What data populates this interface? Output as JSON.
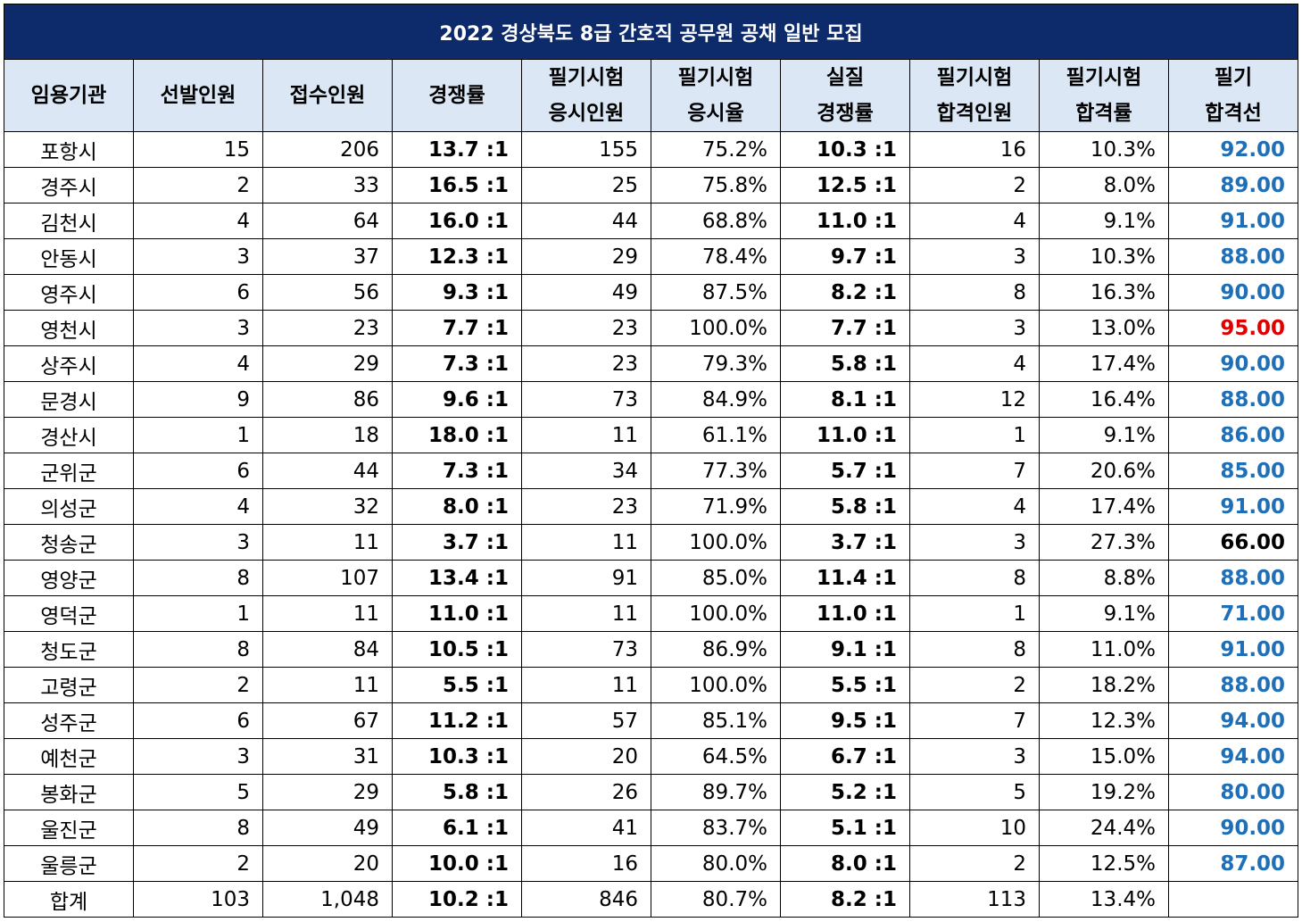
{
  "title": "2022 경상북도 8급 간호직 공무원 공채 일반 모집",
  "colors": {
    "header_bg": "#0d2b6b",
    "subheader_bg": "#dbe7f5",
    "cutoff_blue": "#1f6fb8",
    "cutoff_red": "#e00000",
    "cutoff_black": "#000000"
  },
  "headers": [
    [
      "임용기관"
    ],
    [
      "선발인원"
    ],
    [
      "접수인원"
    ],
    [
      "경쟁률"
    ],
    [
      "필기시험",
      "응시인원"
    ],
    [
      "필기시험",
      "응시율"
    ],
    [
      "실질",
      "경쟁률"
    ],
    [
      "필기시험",
      "합격인원"
    ],
    [
      "필기시험",
      "합격률"
    ],
    [
      "필기",
      "합격선"
    ]
  ],
  "rows": [
    {
      "org": "포항시",
      "quota": "15",
      "applicants": "206",
      "ratio": "13.7 :1",
      "test_takers": "155",
      "test_rate": "75.2%",
      "real_ratio": "10.3 :1",
      "passed": "16",
      "pass_rate": "10.3%",
      "cutoff": "92.00",
      "cutoff_color": "blue"
    },
    {
      "org": "경주시",
      "quota": "2",
      "applicants": "33",
      "ratio": "16.5 :1",
      "test_takers": "25",
      "test_rate": "75.8%",
      "real_ratio": "12.5 :1",
      "passed": "2",
      "pass_rate": "8.0%",
      "cutoff": "89.00",
      "cutoff_color": "blue"
    },
    {
      "org": "김천시",
      "quota": "4",
      "applicants": "64",
      "ratio": "16.0 :1",
      "test_takers": "44",
      "test_rate": "68.8%",
      "real_ratio": "11.0 :1",
      "passed": "4",
      "pass_rate": "9.1%",
      "cutoff": "91.00",
      "cutoff_color": "blue"
    },
    {
      "org": "안동시",
      "quota": "3",
      "applicants": "37",
      "ratio": "12.3 :1",
      "test_takers": "29",
      "test_rate": "78.4%",
      "real_ratio": "9.7 :1",
      "passed": "3",
      "pass_rate": "10.3%",
      "cutoff": "88.00",
      "cutoff_color": "blue"
    },
    {
      "org": "영주시",
      "quota": "6",
      "applicants": "56",
      "ratio": "9.3 :1",
      "test_takers": "49",
      "test_rate": "87.5%",
      "real_ratio": "8.2 :1",
      "passed": "8",
      "pass_rate": "16.3%",
      "cutoff": "90.00",
      "cutoff_color": "blue"
    },
    {
      "org": "영천시",
      "quota": "3",
      "applicants": "23",
      "ratio": "7.7 :1",
      "test_takers": "23",
      "test_rate": "100.0%",
      "real_ratio": "7.7 :1",
      "passed": "3",
      "pass_rate": "13.0%",
      "cutoff": "95.00",
      "cutoff_color": "red"
    },
    {
      "org": "상주시",
      "quota": "4",
      "applicants": "29",
      "ratio": "7.3 :1",
      "test_takers": "23",
      "test_rate": "79.3%",
      "real_ratio": "5.8 :1",
      "passed": "4",
      "pass_rate": "17.4%",
      "cutoff": "90.00",
      "cutoff_color": "blue"
    },
    {
      "org": "문경시",
      "quota": "9",
      "applicants": "86",
      "ratio": "9.6 :1",
      "test_takers": "73",
      "test_rate": "84.9%",
      "real_ratio": "8.1 :1",
      "passed": "12",
      "pass_rate": "16.4%",
      "cutoff": "88.00",
      "cutoff_color": "blue"
    },
    {
      "org": "경산시",
      "quota": "1",
      "applicants": "18",
      "ratio": "18.0 :1",
      "test_takers": "11",
      "test_rate": "61.1%",
      "real_ratio": "11.0 :1",
      "passed": "1",
      "pass_rate": "9.1%",
      "cutoff": "86.00",
      "cutoff_color": "blue"
    },
    {
      "org": "군위군",
      "quota": "6",
      "applicants": "44",
      "ratio": "7.3 :1",
      "test_takers": "34",
      "test_rate": "77.3%",
      "real_ratio": "5.7 :1",
      "passed": "7",
      "pass_rate": "20.6%",
      "cutoff": "85.00",
      "cutoff_color": "blue"
    },
    {
      "org": "의성군",
      "quota": "4",
      "applicants": "32",
      "ratio": "8.0 :1",
      "test_takers": "23",
      "test_rate": "71.9%",
      "real_ratio": "5.8 :1",
      "passed": "4",
      "pass_rate": "17.4%",
      "cutoff": "91.00",
      "cutoff_color": "blue"
    },
    {
      "org": "청송군",
      "quota": "3",
      "applicants": "11",
      "ratio": "3.7 :1",
      "test_takers": "11",
      "test_rate": "100.0%",
      "real_ratio": "3.7 :1",
      "passed": "3",
      "pass_rate": "27.3%",
      "cutoff": "66.00",
      "cutoff_color": "black"
    },
    {
      "org": "영양군",
      "quota": "8",
      "applicants": "107",
      "ratio": "13.4 :1",
      "test_takers": "91",
      "test_rate": "85.0%",
      "real_ratio": "11.4 :1",
      "passed": "8",
      "pass_rate": "8.8%",
      "cutoff": "88.00",
      "cutoff_color": "blue"
    },
    {
      "org": "영덕군",
      "quota": "1",
      "applicants": "11",
      "ratio": "11.0 :1",
      "test_takers": "11",
      "test_rate": "100.0%",
      "real_ratio": "11.0 :1",
      "passed": "1",
      "pass_rate": "9.1%",
      "cutoff": "71.00",
      "cutoff_color": "blue"
    },
    {
      "org": "청도군",
      "quota": "8",
      "applicants": "84",
      "ratio": "10.5 :1",
      "test_takers": "73",
      "test_rate": "86.9%",
      "real_ratio": "9.1 :1",
      "passed": "8",
      "pass_rate": "11.0%",
      "cutoff": "91.00",
      "cutoff_color": "blue"
    },
    {
      "org": "고령군",
      "quota": "2",
      "applicants": "11",
      "ratio": "5.5 :1",
      "test_takers": "11",
      "test_rate": "100.0%",
      "real_ratio": "5.5 :1",
      "passed": "2",
      "pass_rate": "18.2%",
      "cutoff": "88.00",
      "cutoff_color": "blue"
    },
    {
      "org": "성주군",
      "quota": "6",
      "applicants": "67",
      "ratio": "11.2 :1",
      "test_takers": "57",
      "test_rate": "85.1%",
      "real_ratio": "9.5 :1",
      "passed": "7",
      "pass_rate": "12.3%",
      "cutoff": "94.00",
      "cutoff_color": "blue"
    },
    {
      "org": "예천군",
      "quota": "3",
      "applicants": "31",
      "ratio": "10.3 :1",
      "test_takers": "20",
      "test_rate": "64.5%",
      "real_ratio": "6.7 :1",
      "passed": "3",
      "pass_rate": "15.0%",
      "cutoff": "94.00",
      "cutoff_color": "blue"
    },
    {
      "org": "봉화군",
      "quota": "5",
      "applicants": "29",
      "ratio": "5.8 :1",
      "test_takers": "26",
      "test_rate": "89.7%",
      "real_ratio": "5.2 :1",
      "passed": "5",
      "pass_rate": "19.2%",
      "cutoff": "80.00",
      "cutoff_color": "blue"
    },
    {
      "org": "울진군",
      "quota": "8",
      "applicants": "49",
      "ratio": "6.1 :1",
      "test_takers": "41",
      "test_rate": "83.7%",
      "real_ratio": "5.1 :1",
      "passed": "10",
      "pass_rate": "24.4%",
      "cutoff": "90.00",
      "cutoff_color": "blue"
    },
    {
      "org": "울릉군",
      "quota": "2",
      "applicants": "20",
      "ratio": "10.0 :1",
      "test_takers": "16",
      "test_rate": "80.0%",
      "real_ratio": "8.0 :1",
      "passed": "2",
      "pass_rate": "12.5%",
      "cutoff": "87.00",
      "cutoff_color": "blue"
    },
    {
      "org": "합계",
      "quota": "103",
      "applicants": "1,048",
      "ratio": "10.2 :1",
      "test_takers": "846",
      "test_rate": "80.7%",
      "real_ratio": "8.2 :1",
      "passed": "113",
      "pass_rate": "13.4%",
      "cutoff": "",
      "cutoff_color": "black"
    }
  ]
}
